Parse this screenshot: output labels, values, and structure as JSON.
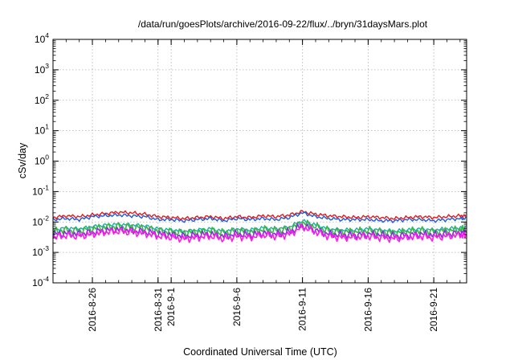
{
  "chart_data": {
    "type": "line",
    "title": "/data/run/goesPlots/archive/2016-09-22/flux/../bryn/31daysMars.plot",
    "xlabel": "Coordinated Universal Time (UTC)",
    "ylabel": "cSv/day",
    "yscale": "log",
    "ylim": [
      0.0001,
      10000
    ],
    "xlim": [
      "2016-08-23T00:00",
      "2016-09-23T12:00"
    ],
    "grid": true,
    "legend": "none",
    "yticks": [
      {
        "value": 0.0001,
        "base": "10",
        "exp": "-4"
      },
      {
        "value": 0.001,
        "base": "10",
        "exp": "-3"
      },
      {
        "value": 0.01,
        "base": "10",
        "exp": "-2"
      },
      {
        "value": 0.1,
        "base": "10",
        "exp": "-1"
      },
      {
        "value": 1,
        "base": "10",
        "exp": "0"
      },
      {
        "value": 10,
        "base": "10",
        "exp": "1"
      },
      {
        "value": 100,
        "base": "10",
        "exp": "2"
      },
      {
        "value": 1000,
        "base": "10",
        "exp": "3"
      },
      {
        "value": 10000,
        "base": "10",
        "exp": "4"
      }
    ],
    "xticks": [
      {
        "date": "2016-08-26",
        "label": "2016-8-26"
      },
      {
        "date": "2016-08-31",
        "label": "2016-8-31"
      },
      {
        "date": "2016-09-01",
        "label": "2016-9-1"
      },
      {
        "date": "2016-09-06",
        "label": "2016-9-6"
      },
      {
        "date": "2016-09-11",
        "label": "2016-9-11"
      },
      {
        "date": "2016-09-16",
        "label": "2016-9-16"
      },
      {
        "date": "2016-09-21",
        "label": "2016-9-21"
      }
    ],
    "x": [
      "2016-08-23",
      "2016-08-24",
      "2016-08-25",
      "2016-08-26",
      "2016-08-27",
      "2016-08-28",
      "2016-08-29",
      "2016-08-30",
      "2016-08-31",
      "2016-09-01",
      "2016-09-02",
      "2016-09-03",
      "2016-09-04",
      "2016-09-05",
      "2016-09-06",
      "2016-09-07",
      "2016-09-08",
      "2016-09-09",
      "2016-09-10",
      "2016-09-11",
      "2016-09-12",
      "2016-09-13",
      "2016-09-14",
      "2016-09-15",
      "2016-09-16",
      "2016-09-17",
      "2016-09-18",
      "2016-09-19",
      "2016-09-20",
      "2016-09-21",
      "2016-09-22",
      "2016-09-23"
    ],
    "series": [
      {
        "color": "#e41a1c",
        "values": [
          0.014,
          0.016,
          0.015,
          0.017,
          0.019,
          0.021,
          0.02,
          0.018,
          0.015,
          0.014,
          0.013,
          0.014,
          0.015,
          0.013,
          0.015,
          0.014,
          0.016,
          0.015,
          0.017,
          0.022,
          0.018,
          0.016,
          0.015,
          0.014,
          0.015,
          0.014,
          0.013,
          0.014,
          0.015,
          0.014,
          0.015,
          0.016
        ]
      },
      {
        "color": "#1f5bdc",
        "values": [
          0.012,
          0.013,
          0.012,
          0.015,
          0.016,
          0.017,
          0.016,
          0.015,
          0.012,
          0.012,
          0.011,
          0.012,
          0.013,
          0.011,
          0.013,
          0.012,
          0.013,
          0.012,
          0.014,
          0.02,
          0.015,
          0.013,
          0.012,
          0.012,
          0.012,
          0.011,
          0.011,
          0.012,
          0.012,
          0.011,
          0.012,
          0.013
        ]
      },
      {
        "color": "#17b2a6",
        "values": [
          0.0055,
          0.0065,
          0.006,
          0.007,
          0.008,
          0.0085,
          0.008,
          0.0075,
          0.006,
          0.0055,
          0.005,
          0.0055,
          0.006,
          0.005,
          0.006,
          0.0055,
          0.0065,
          0.006,
          0.007,
          0.011,
          0.008,
          0.006,
          0.0055,
          0.0055,
          0.006,
          0.0055,
          0.005,
          0.0055,
          0.006,
          0.0055,
          0.006,
          0.0065
        ]
      },
      {
        "color": "#3cb44b",
        "values": [
          0.0048,
          0.0055,
          0.0052,
          0.006,
          0.0068,
          0.0072,
          0.0068,
          0.0064,
          0.0052,
          0.0048,
          0.0044,
          0.0048,
          0.0052,
          0.0044,
          0.0052,
          0.0048,
          0.0056,
          0.0052,
          0.006,
          0.0095,
          0.007,
          0.0052,
          0.0048,
          0.0048,
          0.0052,
          0.0048,
          0.0044,
          0.0048,
          0.0052,
          0.0048,
          0.0052,
          0.0056
        ]
      },
      {
        "color": "#8b2be2",
        "values": [
          0.0038,
          0.0042,
          0.004,
          0.0046,
          0.0052,
          0.0056,
          0.0052,
          0.0048,
          0.004,
          0.0038,
          0.0034,
          0.0037,
          0.004,
          0.0034,
          0.004,
          0.0037,
          0.0043,
          0.004,
          0.0046,
          0.0075,
          0.0054,
          0.004,
          0.0037,
          0.0037,
          0.004,
          0.0037,
          0.0034,
          0.0037,
          0.004,
          0.0037,
          0.004,
          0.0043
        ]
      },
      {
        "color": "#ff1ce6",
        "values": [
          0.0032,
          0.0036,
          0.0034,
          0.004,
          0.0046,
          0.005,
          0.0046,
          0.0042,
          0.0034,
          0.0031,
          0.0028,
          0.0031,
          0.0034,
          0.0028,
          0.0034,
          0.0031,
          0.0037,
          0.0034,
          0.004,
          0.0068,
          0.0047,
          0.0034,
          0.0031,
          0.0031,
          0.0034,
          0.0031,
          0.0028,
          0.0031,
          0.0034,
          0.0031,
          0.0034,
          0.0037
        ]
      }
    ]
  }
}
